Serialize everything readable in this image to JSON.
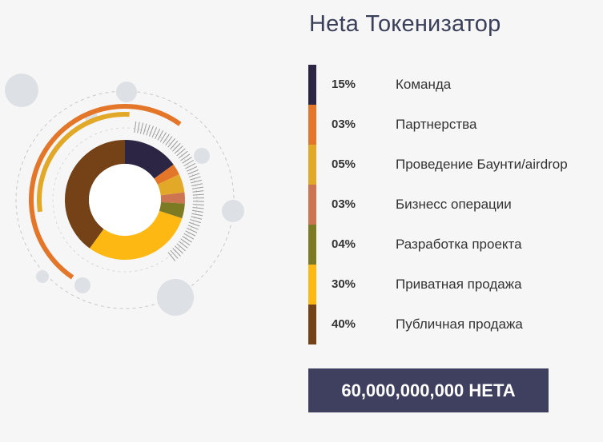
{
  "page": {
    "title": "Heta Токенизатор"
  },
  "chart_data": {
    "type": "pie",
    "categories": [
      "Команда",
      "Партнерства",
      "Проведение Баунти/airdrop",
      "Бизнесс операции",
      "Разработка проекта",
      "Приватная продажа",
      "Публичная продажа"
    ],
    "values": [
      15,
      3,
      5,
      3,
      4,
      30,
      40
    ],
    "value_labels": [
      "15%",
      "03%",
      "05%",
      "03%",
      "04%",
      "30%",
      "40%"
    ],
    "colors": [
      "#2d2544",
      "#e4762a",
      "#e2a828",
      "#cd7550",
      "#7d7a24",
      "#fdb813",
      "#744216"
    ]
  },
  "total": {
    "label": "60,000,000,000 HETA"
  }
}
